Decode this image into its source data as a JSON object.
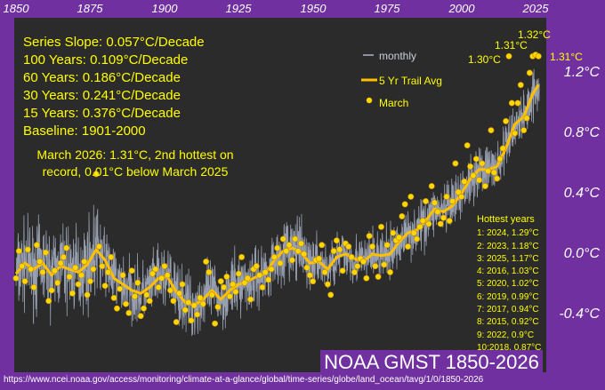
{
  "chart_data": {
    "type": "line",
    "x_ticks": [
      "1850",
      "1875",
      "1900",
      "1925",
      "1950",
      "1975",
      "2000",
      "2025"
    ],
    "y_ticks": [
      "1.2°C",
      "0.8°C",
      "0.4°C",
      "0.0°C",
      "-0.4°C"
    ],
    "xlim": [
      1850,
      2026
    ],
    "ylim": [
      -0.72,
      1.48
    ],
    "stats": [
      "Series Slope: 0.057°C/Decade",
      "100 Years: 0.109°C/Decade",
      "60 Years: 0.186°C/Decade",
      "30 Years: 0.241°C/Decade",
      "15 Years: 0.376°C/Decade",
      "Baseline: 1901-2000"
    ],
    "note": "March 2026: 1.31°C, 2nd  hottest on record, 0.01°C below March 2025",
    "hottest_title": "Hottest years",
    "hottest": [
      "1: 2024, 1.29°C",
      "2: 2023, 1.18°C",
      "3: 2025, 1.17°C",
      "4: 2016, 1.03°C",
      "5: 2020, 1.02°C",
      "6: 2019, 0.99°C",
      "7: 2017, 0.94°C",
      "8: 2015, 0.92°C",
      "9: 2022, 0.9°C",
      "10:2018, 0.87°C"
    ],
    "legend": [
      "monthly",
      "5 Yr Trail Avg",
      "March"
    ],
    "callouts": [
      "1.32°C",
      "1.31°C",
      "1.30°C",
      "1.31°C"
    ],
    "march": [
      [
        1850,
        -0.16
      ],
      [
        1851,
        0.02
      ],
      [
        1852,
        -0.08
      ],
      [
        1853,
        -0.18
      ],
      [
        1854,
        0.03
      ],
      [
        1855,
        -0.1
      ],
      [
        1856,
        -0.22
      ],
      [
        1857,
        0.06
      ],
      [
        1858,
        -0.05
      ],
      [
        1859,
        -0.12
      ],
      [
        1860,
        0.01
      ],
      [
        1861,
        -0.31
      ],
      [
        1862,
        -0.24
      ],
      [
        1863,
        -0.11
      ],
      [
        1864,
        -0.19
      ],
      [
        1865,
        -0.06
      ],
      [
        1866,
        -0.02
      ],
      [
        1867,
        0.04
      ],
      [
        1868,
        -0.15
      ],
      [
        1869,
        -0.26
      ],
      [
        1870,
        -0.09
      ],
      [
        1871,
        -0.2
      ],
      [
        1872,
        -0.14
      ],
      [
        1873,
        -0.05
      ],
      [
        1874,
        -0.27
      ],
      [
        1875,
        -0.18
      ],
      [
        1876,
        -0.1
      ],
      [
        1877,
        0.53
      ],
      [
        1878,
        0.05
      ],
      [
        1879,
        -0.08
      ],
      [
        1880,
        -0.21
      ],
      [
        1881,
        -0.12
      ],
      [
        1882,
        -0.02
      ],
      [
        1883,
        -0.29
      ],
      [
        1884,
        -0.36
      ],
      [
        1885,
        -0.23
      ],
      [
        1886,
        -0.14
      ],
      [
        1887,
        -0.33
      ],
      [
        1888,
        -0.39
      ],
      [
        1889,
        -0.11
      ],
      [
        1890,
        -0.28
      ],
      [
        1891,
        -0.19
      ],
      [
        1892,
        -0.41
      ],
      [
        1893,
        -0.36
      ],
      [
        1894,
        -0.27
      ],
      [
        1895,
        -0.31
      ],
      [
        1896,
        -0.13
      ],
      [
        1897,
        -0.1
      ],
      [
        1898,
        -0.22
      ],
      [
        1899,
        -0.16
      ],
      [
        1900,
        -0.08
      ],
      [
        1901,
        -0.14
      ],
      [
        1902,
        -0.24
      ],
      [
        1903,
        -0.31
      ],
      [
        1904,
        -0.45
      ],
      [
        1905,
        -0.26
      ],
      [
        1906,
        -0.2
      ],
      [
        1907,
        -0.37
      ],
      [
        1908,
        -0.32
      ],
      [
        1909,
        -0.44
      ],
      [
        1910,
        -0.34
      ],
      [
        1911,
        -0.4
      ],
      [
        1912,
        -0.29
      ],
      [
        1913,
        -0.33
      ],
      [
        1914,
        -0.05
      ],
      [
        1915,
        -0.12
      ],
      [
        1916,
        -0.27
      ],
      [
        1917,
        -0.46
      ],
      [
        1918,
        -0.35
      ],
      [
        1919,
        -0.18
      ],
      [
        1920,
        -0.22
      ],
      [
        1921,
        -0.15
      ],
      [
        1922,
        -0.28
      ],
      [
        1923,
        -0.2
      ],
      [
        1924,
        -0.25
      ],
      [
        1925,
        -0.13
      ],
      [
        1926,
        -0.02
      ],
      [
        1927,
        -0.19
      ],
      [
        1928,
        -0.16
      ],
      [
        1929,
        -0.3
      ],
      [
        1930,
        -0.1
      ],
      [
        1931,
        -0.08
      ],
      [
        1932,
        -0.14
      ],
      [
        1933,
        -0.22
      ],
      [
        1934,
        -0.12
      ],
      [
        1935,
        -0.17
      ],
      [
        1936,
        -0.1
      ],
      [
        1937,
        -0.02
      ],
      [
        1938,
        0.04
      ],
      [
        1939,
        -0.06
      ],
      [
        1940,
        0.1
      ],
      [
        1941,
        0.02
      ],
      [
        1942,
        0.06
      ],
      [
        1943,
        -0.04
      ],
      [
        1944,
        0.1
      ],
      [
        1945,
        0.02
      ],
      [
        1946,
        0.07
      ],
      [
        1947,
        0.0
      ],
      [
        1948,
        -0.09
      ],
      [
        1949,
        -0.14
      ],
      [
        1950,
        -0.18
      ],
      [
        1951,
        -0.04
      ],
      [
        1952,
        -0.03
      ],
      [
        1953,
        0.06
      ],
      [
        1954,
        -0.12
      ],
      [
        1955,
        -0.2
      ],
      [
        1956,
        -0.27
      ],
      [
        1957,
        0.02
      ],
      [
        1958,
        0.09
      ],
      [
        1959,
        0.03
      ],
      [
        1960,
        -0.11
      ],
      [
        1961,
        0.07
      ],
      [
        1962,
        0.05
      ],
      [
        1963,
        -0.02
      ],
      [
        1964,
        -0.12
      ],
      [
        1965,
        -0.08
      ],
      [
        1966,
        -0.03
      ],
      [
        1967,
        -0.05
      ],
      [
        1968,
        -0.16
      ],
      [
        1969,
        0.12
      ],
      [
        1970,
        0.05
      ],
      [
        1971,
        -0.08
      ],
      [
        1972,
        -0.15
      ],
      [
        1973,
        0.18
      ],
      [
        1974,
        -0.07
      ],
      [
        1975,
        0.06
      ],
      [
        1976,
        -0.12
      ],
      [
        1977,
        0.14
      ],
      [
        1978,
        0.09
      ],
      [
        1979,
        0.11
      ],
      [
        1980,
        0.25
      ],
      [
        1981,
        0.33
      ],
      [
        1982,
        0.05
      ],
      [
        1983,
        0.38
      ],
      [
        1984,
        0.14
      ],
      [
        1985,
        0.1
      ],
      [
        1986,
        0.18
      ],
      [
        1987,
        0.22
      ],
      [
        1988,
        0.35
      ],
      [
        1989,
        0.2
      ],
      [
        1990,
        0.45
      ],
      [
        1991,
        0.34
      ],
      [
        1992,
        0.28
      ],
      [
        1993,
        0.2
      ],
      [
        1994,
        0.24
      ],
      [
        1995,
        0.38
      ],
      [
        1996,
        0.22
      ],
      [
        1997,
        0.35
      ],
      [
        1998,
        0.6
      ],
      [
        1999,
        0.41
      ],
      [
        2000,
        0.38
      ],
      [
        2001,
        0.48
      ],
      [
        2002,
        0.72
      ],
      [
        2003,
        0.58
      ],
      [
        2004,
        0.52
      ],
      [
        2005,
        0.63
      ],
      [
        2006,
        0.49
      ],
      [
        2007,
        0.6
      ],
      [
        2008,
        0.45
      ],
      [
        2009,
        0.55
      ],
      [
        2010,
        0.82
      ],
      [
        2011,
        0.54
      ],
      [
        2012,
        0.5
      ],
      [
        2013,
        0.63
      ],
      [
        2014,
        0.7
      ],
      [
        2015,
        0.88
      ],
      [
        2016,
        1.31
      ],
      [
        2017,
        1.0
      ],
      [
        2018,
        0.8
      ],
      [
        2019,
        1.0
      ],
      [
        2020,
        1.12
      ],
      [
        2021,
        0.82
      ],
      [
        2022,
        0.9
      ],
      [
        2023,
        1.2
      ],
      [
        2024,
        1.31
      ],
      [
        2025,
        1.32
      ],
      [
        2026,
        1.31
      ]
    ],
    "avg5": [
      [
        1850,
        -0.13
      ],
      [
        1853,
        -0.06
      ],
      [
        1856,
        -0.1
      ],
      [
        1859,
        -0.06
      ],
      [
        1862,
        -0.14
      ],
      [
        1865,
        -0.08
      ],
      [
        1868,
        -0.1
      ],
      [
        1871,
        -0.12
      ],
      [
        1874,
        -0.07
      ],
      [
        1877,
        0.03
      ],
      [
        1880,
        -0.04
      ],
      [
        1883,
        -0.16
      ],
      [
        1886,
        -0.2
      ],
      [
        1889,
        -0.24
      ],
      [
        1892,
        -0.26
      ],
      [
        1895,
        -0.22
      ],
      [
        1898,
        -0.16
      ],
      [
        1901,
        -0.15
      ],
      [
        1904,
        -0.25
      ],
      [
        1907,
        -0.32
      ],
      [
        1910,
        -0.34
      ],
      [
        1913,
        -0.3
      ],
      [
        1916,
        -0.24
      ],
      [
        1919,
        -0.3
      ],
      [
        1922,
        -0.24
      ],
      [
        1925,
        -0.2
      ],
      [
        1928,
        -0.18
      ],
      [
        1931,
        -0.15
      ],
      [
        1934,
        -0.13
      ],
      [
        1937,
        -0.04
      ],
      [
        1940,
        0.02
      ],
      [
        1943,
        0.04
      ],
      [
        1946,
        0.01
      ],
      [
        1949,
        -0.06
      ],
      [
        1952,
        -0.05
      ],
      [
        1955,
        -0.1
      ],
      [
        1958,
        -0.02
      ],
      [
        1961,
        0.0
      ],
      [
        1964,
        -0.03
      ],
      [
        1967,
        -0.05
      ],
      [
        1970,
        0.0
      ],
      [
        1973,
        -0.01
      ],
      [
        1976,
        0.0
      ],
      [
        1979,
        0.08
      ],
      [
        1982,
        0.14
      ],
      [
        1985,
        0.16
      ],
      [
        1988,
        0.22
      ],
      [
        1991,
        0.3
      ],
      [
        1994,
        0.28
      ],
      [
        1997,
        0.32
      ],
      [
        2000,
        0.4
      ],
      [
        2003,
        0.5
      ],
      [
        2006,
        0.56
      ],
      [
        2009,
        0.56
      ],
      [
        2012,
        0.58
      ],
      [
        2015,
        0.7
      ],
      [
        2018,
        0.86
      ],
      [
        2021,
        0.91
      ],
      [
        2024,
        1.06
      ],
      [
        2026,
        1.12
      ]
    ]
  },
  "banner": "NOAA GMST 1850-2026",
  "source": "https://www.ncei.noaa.gov/access/monitoring/climate-at-a-glance/global/time-series/globe/land_ocean/tavg/1/0/1850-2026",
  "colors": {
    "frame": "#7030a0",
    "plot_bg": "#2b2b2b",
    "monthly": "#aab4c8",
    "avg": "#ffc000",
    "march": "#ffd700",
    "text": "#ffff00"
  }
}
